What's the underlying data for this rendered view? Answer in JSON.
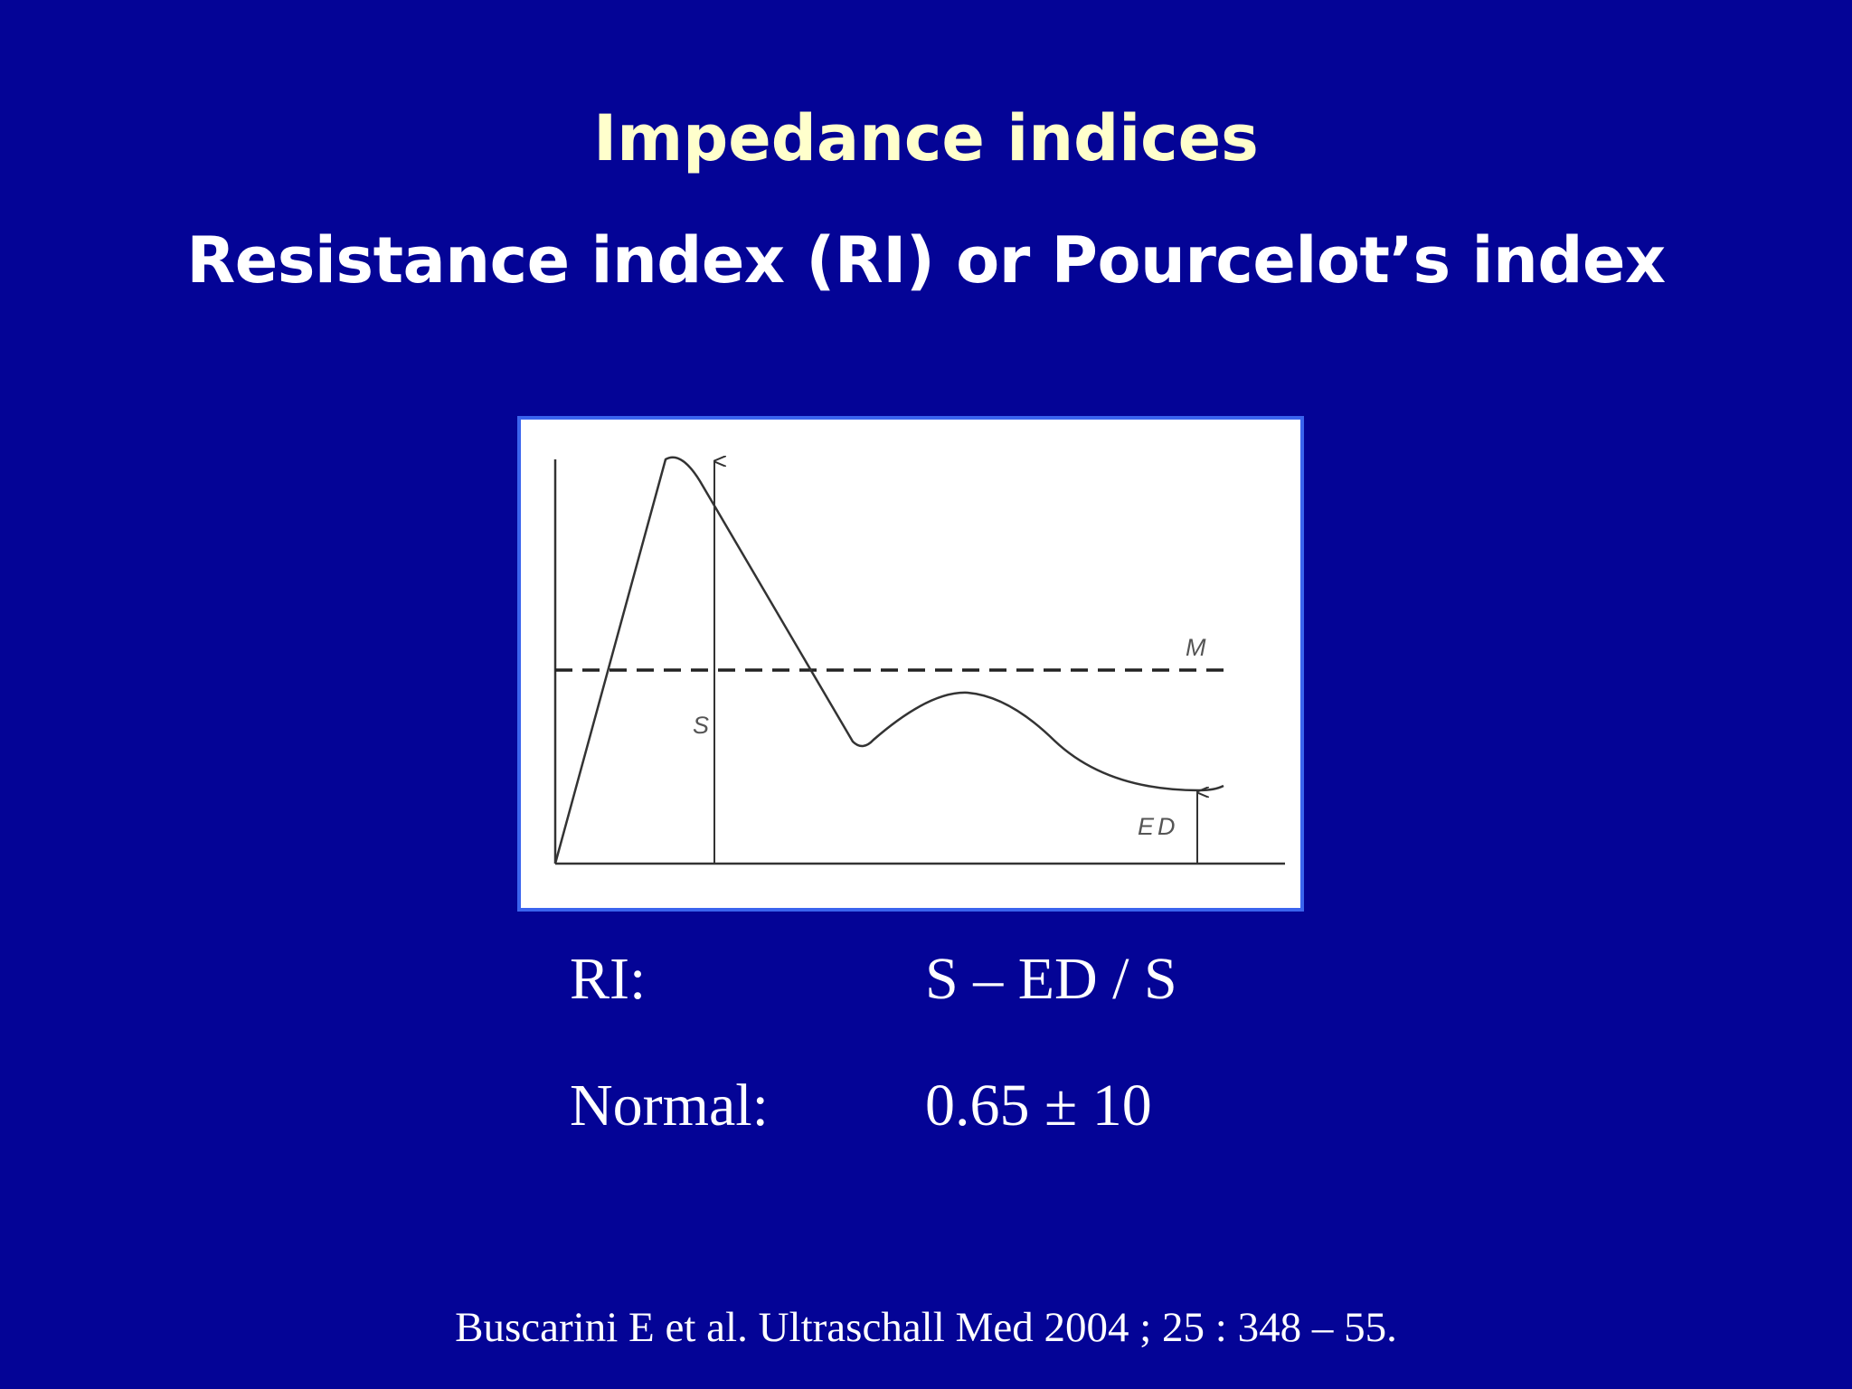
{
  "colors": {
    "background": "#040496",
    "title_primary": "#ffffcc",
    "title_secondary": "#ffffff",
    "text": "#ffffff",
    "figure_border": "#3a64ee",
    "figure_background": "#ffffff",
    "figure_ink": "#333333"
  },
  "slide": {
    "title": "Impedance indices",
    "subtitle": "Resistance index (RI) or Pourcelot’s index"
  },
  "figure": {
    "labels": {
      "s": "S",
      "m": "M",
      "ed": "ED"
    }
  },
  "formula": {
    "ri_label": "RI:",
    "ri_value": "S – ED / S",
    "normal_label": "Normal:",
    "normal_value": "0.65 ± 10"
  },
  "citation": "Buscarini E et al. Ultraschall Med 2004 ; 25 : 348 – 55."
}
